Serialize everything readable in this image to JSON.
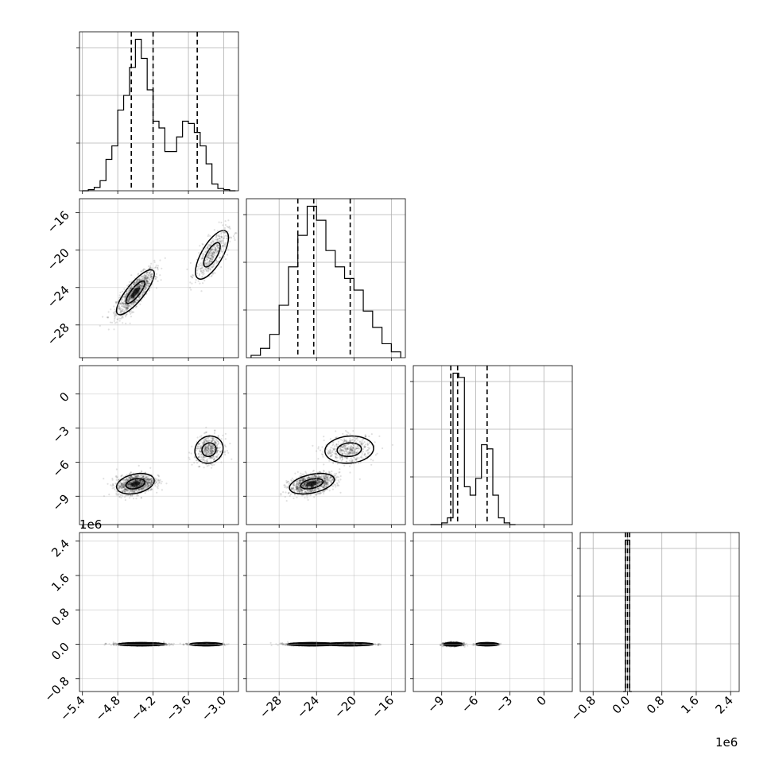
{
  "chart_data": {
    "type": "corner",
    "grid": true,
    "parameters": [
      {
        "ticks": [
          -5.4,
          -4.8,
          -4.2,
          -3.6,
          -3.0
        ],
        "tick_labels": [
          "−5.4",
          "−4.8",
          "−4.2",
          "−3.6",
          "−3.0"
        ],
        "range": [
          -5.45,
          -2.75
        ]
      },
      {
        "ticks": [
          -28,
          -24,
          -20,
          -16
        ],
        "tick_labels": [
          "−28",
          "−24",
          "−20",
          "−16"
        ],
        "range": [
          -31.5,
          -14.5
        ]
      },
      {
        "ticks": [
          -9,
          -6,
          -3,
          0
        ],
        "tick_labels": [
          "−9",
          "−6",
          "−3",
          "0"
        ],
        "range": [
          -11.5,
          2.5
        ]
      },
      {
        "ticks": [
          -0.8,
          0.0,
          0.8,
          1.6,
          2.4
        ],
        "tick_labels": [
          "−0.8",
          "0.0",
          "0.8",
          "1.6",
          "2.4"
        ],
        "range": [
          -1.1,
          2.6
        ],
        "offset_label": "1e6"
      }
    ],
    "histograms": [
      {
        "bin_edges": [
          -5.4,
          -5.3,
          -5.2,
          -5.1,
          -5.0,
          -4.9,
          -4.8,
          -4.7,
          -4.6,
          -4.5,
          -4.4,
          -4.3,
          -4.2,
          -4.1,
          -4.0,
          -3.9,
          -3.8,
          -3.7,
          -3.6,
          -3.5,
          -3.4,
          -3.3,
          -3.2,
          -3.1,
          -3.0,
          -2.9,
          -2.8
        ],
        "counts": [
          0,
          1,
          3,
          9,
          28,
          40,
          72,
          85,
          110,
          135,
          118,
          90,
          62,
          56,
          35,
          35,
          48,
          62,
          60,
          52,
          40,
          24,
          6,
          2,
          1,
          0
        ],
        "quantiles": [
          -4.57,
          -4.2,
          -3.45
        ]
      },
      {
        "bin_edges": [
          -31,
          -30,
          -29,
          -28,
          -27,
          -26,
          -25,
          -24,
          -23,
          -22,
          -21,
          -20,
          -19,
          -18,
          -17,
          -16,
          -15
        ],
        "counts": [
          2,
          8,
          20,
          45,
          78,
          105,
          130,
          118,
          92,
          78,
          68,
          58,
          40,
          26,
          12,
          5
        ],
        "quantiles": [
          -26.0,
          -24.3,
          -20.4
        ]
      },
      {
        "bin_edges": [
          -10,
          -9.5,
          -9,
          -8.5,
          -8,
          -7.5,
          -7,
          -6.5,
          -6,
          -5.5,
          -5,
          -4.5,
          -4,
          -3.5,
          -3,
          -2.5
        ],
        "counts": [
          0,
          0,
          2,
          8,
          180,
          175,
          45,
          35,
          55,
          95,
          90,
          35,
          8,
          2,
          0
        ],
        "quantiles": [
          -8.2,
          -7.6,
          -5.0
        ]
      },
      {
        "bin_edges": [
          -0.1,
          -0.05,
          0.0,
          0.05,
          0.1
        ],
        "counts": [
          0,
          95,
          95,
          0
        ],
        "quantiles": [
          -0.05,
          0.0,
          0.05
        ]
      }
    ],
    "joint_distributions": [
      {
        "row": 1,
        "col": 0,
        "modes": [
          {
            "mean": [
              -4.5,
              -24.5
            ],
            "sd": [
              0.16,
              1.2
            ],
            "corr": 0.82,
            "weight": 0.7
          },
          {
            "mean": [
              -3.2,
              -20.5
            ],
            "sd": [
              0.14,
              1.3
            ],
            "corr": 0.7,
            "weight": 0.3
          }
        ]
      },
      {
        "row": 2,
        "col": 0,
        "modes": [
          {
            "mean": [
              -4.5,
              -7.9
            ],
            "sd": [
              0.16,
              0.45
            ],
            "corr": 0.3,
            "weight": 0.7
          },
          {
            "mean": [
              -3.25,
              -4.9
            ],
            "sd": [
              0.12,
              0.6
            ],
            "corr": 0.1,
            "weight": 0.3
          }
        ]
      },
      {
        "row": 2,
        "col": 1,
        "modes": [
          {
            "mean": [
              -24.5,
              -7.9
            ],
            "sd": [
              1.2,
              0.45
            ],
            "corr": 0.4,
            "weight": 0.7
          },
          {
            "mean": [
              -20.5,
              -4.9
            ],
            "sd": [
              1.3,
              0.6
            ],
            "corr": 0.1,
            "weight": 0.3
          }
        ]
      },
      {
        "row": 3,
        "col": 0,
        "modes": [
          {
            "mean": [
              -4.4,
              0.0
            ],
            "sd": [
              0.2,
              0.015
            ],
            "corr": 0.0,
            "weight": 0.7
          },
          {
            "mean": [
              -3.3,
              0.0
            ],
            "sd": [
              0.14,
              0.012
            ],
            "corr": 0.0,
            "weight": 0.3
          }
        ]
      },
      {
        "row": 3,
        "col": 1,
        "modes": [
          {
            "mean": [
              -24.5,
              0.0
            ],
            "sd": [
              1.3,
              0.015
            ],
            "corr": 0.0,
            "weight": 0.7
          },
          {
            "mean": [
              -20.5,
              0.0
            ],
            "sd": [
              1.3,
              0.012
            ],
            "corr": 0.0,
            "weight": 0.3
          }
        ]
      },
      {
        "row": 3,
        "col": 2,
        "modes": [
          {
            "mean": [
              -8.0,
              0.0
            ],
            "sd": [
              0.4,
              0.02
            ],
            "corr": 0.0,
            "weight": 0.7
          },
          {
            "mean": [
              -5.0,
              0.0
            ],
            "sd": [
              0.5,
              0.012
            ],
            "corr": 0.0,
            "weight": 0.3
          }
        ]
      }
    ]
  }
}
